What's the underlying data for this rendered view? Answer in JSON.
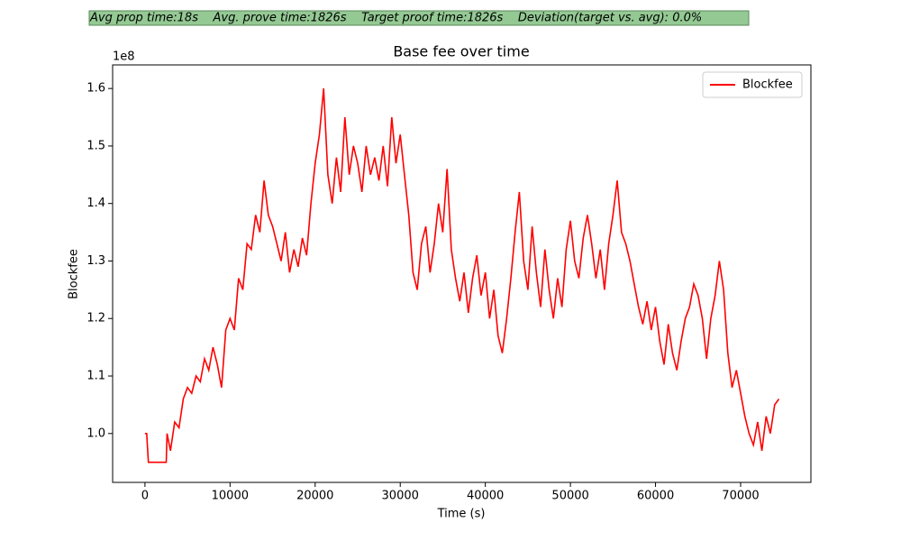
{
  "banner": "Avg prop time:18s    Avg. prove time:1826s    Target proof time:1826s    Deviation(target vs. avg): 0.0%",
  "chart_data": {
    "type": "line",
    "title": "Base fee over time",
    "xlabel": "Time (s)",
    "ylabel": "Blockfee",
    "y_offset_label": "1e8",
    "legend": "upper right",
    "grid": false,
    "x": [
      0,
      200,
      400,
      2500,
      2600,
      3000,
      3500,
      4000,
      4500,
      5000,
      5500,
      6000,
      6500,
      7000,
      7500,
      8000,
      8500,
      9000,
      9500,
      10000,
      10500,
      11000,
      11500,
      12000,
      12500,
      13000,
      13500,
      14000,
      14500,
      15000,
      15500,
      16000,
      16500,
      17000,
      17500,
      18000,
      18500,
      19000,
      19500,
      20000,
      20500,
      21000,
      21500,
      22000,
      22500,
      23000,
      23500,
      24000,
      24500,
      25000,
      25500,
      26000,
      26500,
      27000,
      27500,
      28000,
      28500,
      29000,
      29500,
      30000,
      30500,
      31000,
      31500,
      32000,
      32500,
      33000,
      33500,
      34000,
      34500,
      35000,
      35500,
      36000,
      36500,
      37000,
      37500,
      38000,
      38500,
      39000,
      39500,
      40000,
      40500,
      41000,
      41500,
      42000,
      42500,
      43000,
      43500,
      44000,
      44500,
      45000,
      45500,
      46000,
      46500,
      47000,
      47500,
      48000,
      48500,
      49000,
      49500,
      50000,
      50500,
      51000,
      51500,
      52000,
      52500,
      53000,
      53500,
      54000,
      54500,
      55000,
      55500,
      56000,
      56500,
      57000,
      57500,
      58000,
      58500,
      59000,
      59500,
      60000,
      60500,
      61000,
      61500,
      62000,
      62500,
      63000,
      63500,
      64000,
      64500,
      65000,
      65500,
      66000,
      66500,
      67000,
      67500,
      68000,
      68500,
      69000,
      69500,
      70000,
      70500,
      71000,
      71500,
      72000,
      72500,
      73000,
      73500,
      74000,
      74500
    ],
    "series": [
      {
        "name": "Blockfee",
        "color": "#ff0000",
        "values": [
          1.0,
          1.0,
          0.95,
          0.95,
          1.0,
          0.97,
          1.02,
          1.01,
          1.06,
          1.08,
          1.07,
          1.1,
          1.09,
          1.13,
          1.11,
          1.15,
          1.12,
          1.08,
          1.18,
          1.2,
          1.18,
          1.27,
          1.25,
          1.33,
          1.32,
          1.38,
          1.35,
          1.44,
          1.38,
          1.36,
          1.33,
          1.3,
          1.35,
          1.28,
          1.32,
          1.29,
          1.34,
          1.31,
          1.4,
          1.47,
          1.52,
          1.6,
          1.45,
          1.4,
          1.48,
          1.42,
          1.55,
          1.45,
          1.5,
          1.47,
          1.42,
          1.5,
          1.45,
          1.48,
          1.44,
          1.5,
          1.43,
          1.55,
          1.47,
          1.52,
          1.45,
          1.38,
          1.28,
          1.25,
          1.33,
          1.36,
          1.28,
          1.33,
          1.4,
          1.35,
          1.46,
          1.32,
          1.27,
          1.23,
          1.28,
          1.21,
          1.27,
          1.31,
          1.24,
          1.28,
          1.2,
          1.25,
          1.17,
          1.14,
          1.2,
          1.27,
          1.35,
          1.42,
          1.3,
          1.25,
          1.36,
          1.28,
          1.22,
          1.32,
          1.25,
          1.2,
          1.27,
          1.22,
          1.32,
          1.37,
          1.3,
          1.27,
          1.34,
          1.38,
          1.33,
          1.27,
          1.32,
          1.25,
          1.33,
          1.38,
          1.44,
          1.35,
          1.33,
          1.3,
          1.26,
          1.22,
          1.19,
          1.23,
          1.18,
          1.22,
          1.16,
          1.12,
          1.19,
          1.14,
          1.11,
          1.16,
          1.2,
          1.22,
          1.26,
          1.24,
          1.2,
          1.13,
          1.2,
          1.24,
          1.3,
          1.25,
          1.14,
          1.08,
          1.11,
          1.07,
          1.03,
          1.0,
          0.98,
          1.02,
          0.97,
          1.03,
          1.0,
          1.05,
          1.06
        ]
      }
    ],
    "xlim": [
      -3800,
      78260
    ],
    "ylim": [
      0.915,
      1.641
    ],
    "xticks": [
      0,
      10000,
      20000,
      30000,
      40000,
      50000,
      60000,
      70000
    ],
    "yticks": [
      {
        "value": 1.0,
        "label": "1.0"
      },
      {
        "value": 1.1,
        "label": "1.1"
      },
      {
        "value": 1.2,
        "label": "1.2"
      },
      {
        "value": 1.3,
        "label": "1.3"
      },
      {
        "value": 1.4,
        "label": "1.4"
      },
      {
        "value": 1.5,
        "label": "1.5"
      },
      {
        "value": 1.6,
        "label": "1.6"
      }
    ]
  }
}
